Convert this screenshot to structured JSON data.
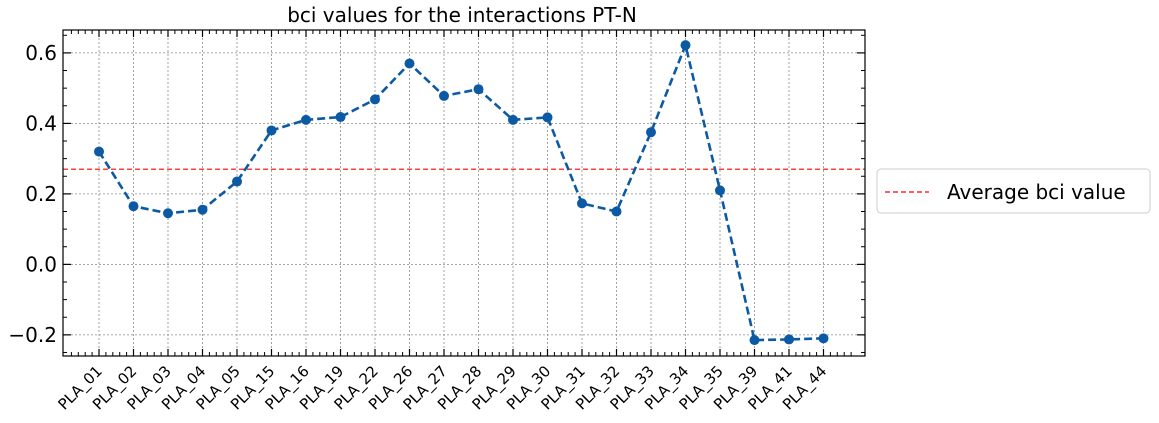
{
  "chart_data": {
    "type": "line",
    "title": "bci values for the interactions PT-N",
    "xlabel": "",
    "ylabel": "",
    "categories": [
      "PLA_01",
      "PLA_02",
      "PLA_03",
      "PLA_04",
      "PLA_05",
      "PLA_15",
      "PLA_16",
      "PLA_19",
      "PLA_22",
      "PLA_26",
      "PLA_27",
      "PLA_28",
      "PLA_29",
      "PLA_30",
      "PLA_31",
      "PLA_32",
      "PLA_33",
      "PLA_34",
      "PLA_35",
      "PLA_39",
      "PLA_41",
      "PLA_44"
    ],
    "series": [
      {
        "values": [
          0.32,
          0.165,
          0.145,
          0.155,
          0.235,
          0.38,
          0.41,
          0.418,
          0.468,
          0.57,
          0.478,
          0.497,
          0.41,
          0.417,
          0.173,
          0.15,
          0.375,
          0.622,
          0.21,
          -0.215,
          -0.213,
          -0.21
        ],
        "color": "#0b5aa3",
        "style": "dashed",
        "marker": "circle"
      }
    ],
    "average": {
      "value": 0.27,
      "label": "Average bci value",
      "color": "#ff0000",
      "style": "dashed"
    },
    "yticks": [
      -0.2,
      0.0,
      0.2,
      0.4,
      0.6
    ],
    "ytick_labels": [
      "−0.2",
      "0.0",
      "0.2",
      "0.4",
      "0.6"
    ],
    "ylim": [
      -0.26,
      0.665
    ],
    "grid": true,
    "legend_position": "right"
  }
}
